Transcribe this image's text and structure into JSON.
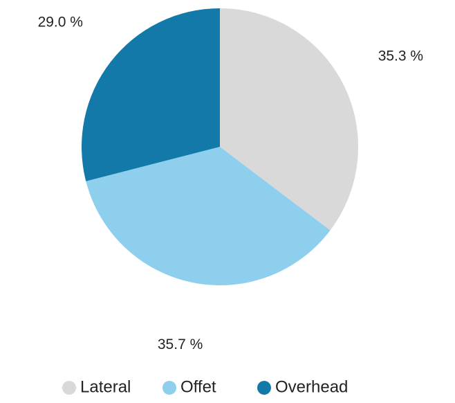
{
  "chart_data": {
    "type": "pie",
    "categories": [
      "Lateral",
      "Offet",
      "Overhead"
    ],
    "values": [
      35.3,
      35.7,
      29.0
    ],
    "value_labels": [
      "35.3 %",
      "35.7 %",
      "29.0 %"
    ],
    "colors": [
      "#d9d9d9",
      "#8ecfee",
      "#1279a8"
    ],
    "legend": "bottom"
  }
}
